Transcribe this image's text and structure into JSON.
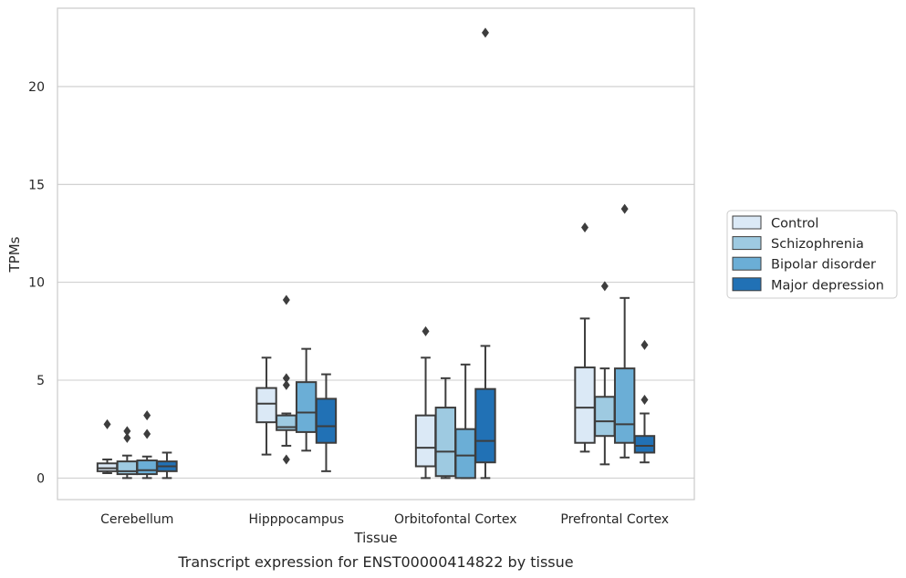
{
  "chart_data": {
    "type": "box",
    "caption": "Transcript expression for ENST00000414822 by tissue",
    "xlabel": "Tissue",
    "ylabel": "TPMs",
    "ylim": [
      -1.1,
      24.0
    ],
    "yticks": [
      0,
      5,
      10,
      15,
      20
    ],
    "grid": "horizontal",
    "legend_position": "right",
    "categories": [
      "Cerebellum",
      "Hipppocampus",
      "Orbitofontal Cortex",
      "Prefrontal Cortex"
    ],
    "series": [
      {
        "name": "Control",
        "color": "#dbe9f6",
        "boxes": [
          {
            "whislo": 0.25,
            "q1": 0.35,
            "med": 0.5,
            "q3": 0.75,
            "whishi": 0.95,
            "fliers": [
              2.75
            ]
          },
          {
            "whislo": 1.2,
            "q1": 2.85,
            "med": 3.8,
            "q3": 4.6,
            "whishi": 6.15,
            "fliers": []
          },
          {
            "whislo": 0.0,
            "q1": 0.6,
            "med": 1.55,
            "q3": 3.2,
            "whishi": 6.15,
            "fliers": [
              7.5
            ]
          },
          {
            "whislo": 1.35,
            "q1": 1.8,
            "med": 3.6,
            "q3": 5.65,
            "whishi": 8.15,
            "fliers": [
              12.8
            ]
          }
        ]
      },
      {
        "name": "Schizophrenia",
        "color": "#9ecae1",
        "boxes": [
          {
            "whislo": 0.0,
            "q1": 0.2,
            "med": 0.35,
            "q3": 0.85,
            "whishi": 1.15,
            "fliers": [
              2.05,
              2.4
            ]
          },
          {
            "whislo": 1.65,
            "q1": 2.45,
            "med": 2.6,
            "q3": 3.2,
            "whishi": 3.3,
            "fliers": [
              0.95,
              4.75,
              5.1,
              9.1
            ]
          },
          {
            "whislo": 0.0,
            "q1": 0.1,
            "med": 1.35,
            "q3": 3.6,
            "whishi": 5.1,
            "fliers": []
          },
          {
            "whislo": 0.7,
            "q1": 2.15,
            "med": 2.9,
            "q3": 4.15,
            "whishi": 5.6,
            "fliers": [
              9.8
            ]
          }
        ]
      },
      {
        "name": "Bipolar disorder",
        "color": "#6baed6",
        "boxes": [
          {
            "whislo": 0.0,
            "q1": 0.2,
            "med": 0.4,
            "q3": 0.9,
            "whishi": 1.1,
            "fliers": [
              2.25,
              3.2
            ]
          },
          {
            "whislo": 1.4,
            "q1": 2.35,
            "med": 3.35,
            "q3": 4.9,
            "whishi": 6.6,
            "fliers": []
          },
          {
            "whislo": 0.0,
            "q1": 0.0,
            "med": 1.15,
            "q3": 2.5,
            "whishi": 5.8,
            "fliers": []
          },
          {
            "whislo": 1.05,
            "q1": 1.8,
            "med": 2.75,
            "q3": 5.6,
            "whishi": 9.2,
            "fliers": [
              13.75
            ]
          }
        ]
      },
      {
        "name": "Major depression",
        "color": "#2171b5",
        "boxes": [
          {
            "whislo": 0.0,
            "q1": 0.35,
            "med": 0.6,
            "q3": 0.85,
            "whishi": 1.3,
            "fliers": []
          },
          {
            "whislo": 0.35,
            "q1": 1.8,
            "med": 2.65,
            "q3": 4.05,
            "whishi": 5.3,
            "fliers": []
          },
          {
            "whislo": 0.0,
            "q1": 0.8,
            "med": 1.9,
            "q3": 4.55,
            "whishi": 6.75,
            "fliers": [
              22.75
            ]
          },
          {
            "whislo": 0.8,
            "q1": 1.3,
            "med": 1.65,
            "q3": 2.15,
            "whishi": 3.3,
            "fliers": [
              4.0,
              6.8
            ]
          }
        ]
      }
    ]
  }
}
